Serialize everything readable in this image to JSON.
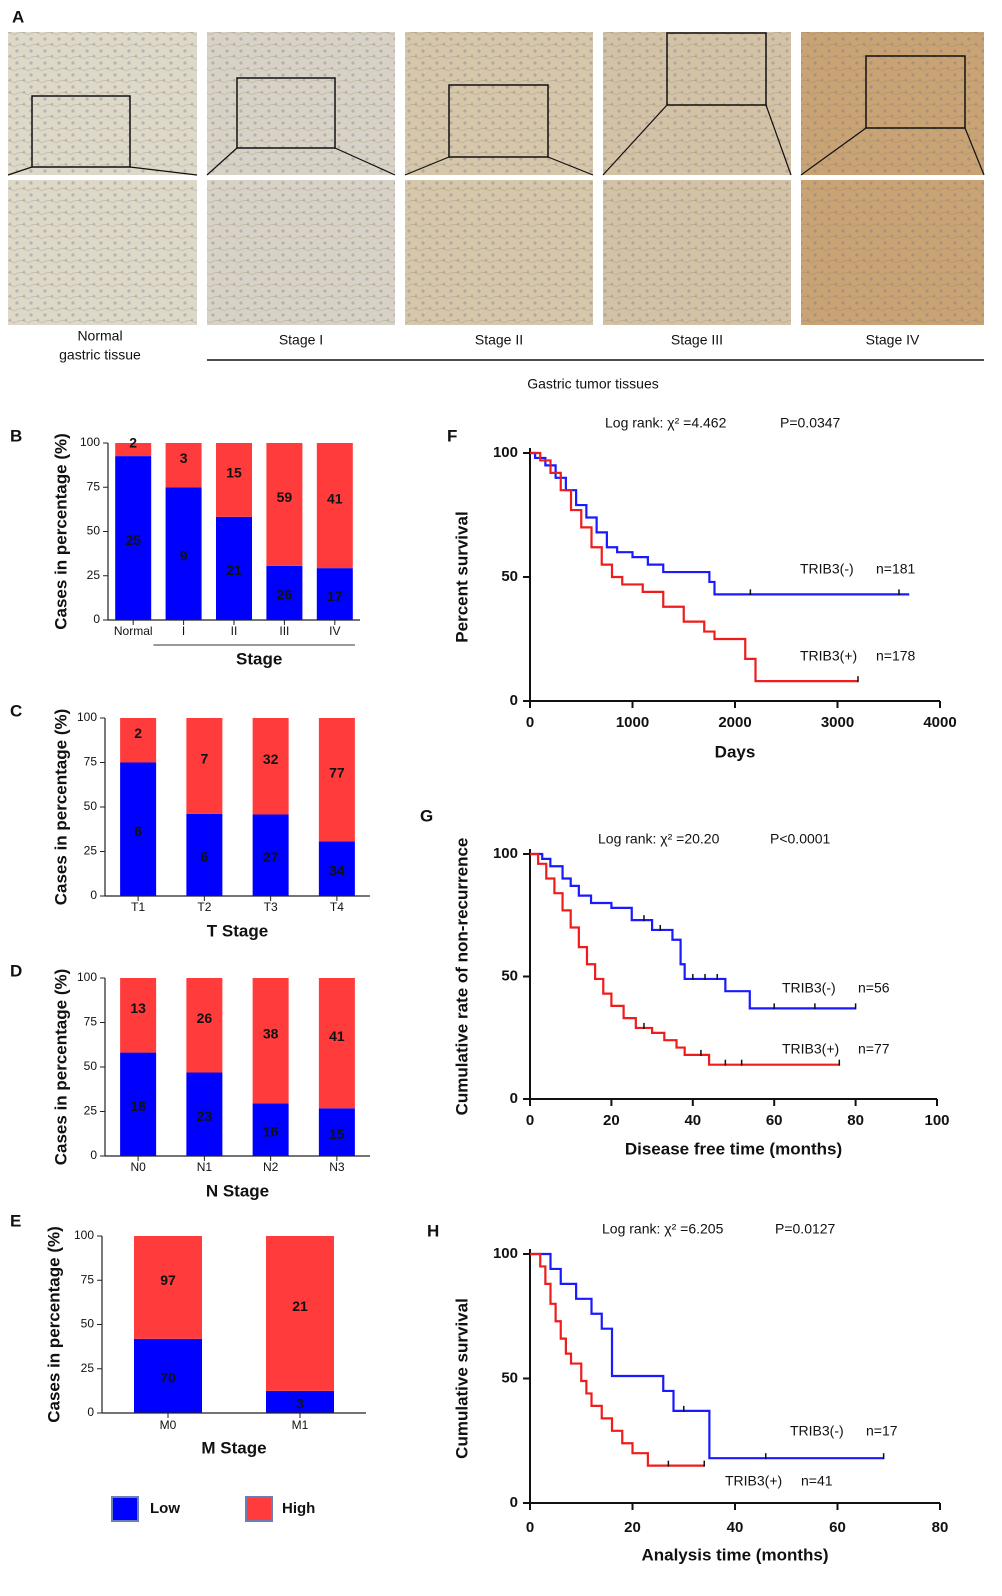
{
  "panel_a": {
    "label": "A",
    "normal_caption": [
      "Normal",
      "gastric tissue"
    ],
    "stage_captions": [
      "Stage I",
      "Stage II",
      "Stage III",
      "Stage IV"
    ],
    "group_label": "Gastric tumor tissues"
  },
  "chart_data": [
    {
      "type": "bar",
      "stacked": true,
      "label": "B",
      "ylabel": "Cases in percentage (%)",
      "xlabel": "Stage",
      "categories": [
        "Normal",
        "I",
        "II",
        "III",
        "IV"
      ],
      "ylim": [
        0,
        100
      ],
      "yticks": [
        0,
        25,
        50,
        75,
        100
      ],
      "series": [
        {
          "name": "Low",
          "color": "#0000ff",
          "values": [
            92.6,
            75,
            58.3,
            30.6,
            29.3
          ],
          "counts": [
            25,
            9,
            21,
            26,
            17
          ]
        },
        {
          "name": "High",
          "color": "#ff3b3b",
          "values": [
            7.4,
            25,
            41.7,
            69.4,
            70.7
          ],
          "counts": [
            2,
            3,
            15,
            59,
            41
          ]
        }
      ]
    },
    {
      "type": "bar",
      "stacked": true,
      "label": "C",
      "ylabel": "Cases in percentage (%)",
      "xlabel": "T Stage",
      "categories": [
        "T1",
        "T2",
        "T3",
        "T4"
      ],
      "ylim": [
        0,
        100
      ],
      "yticks": [
        0,
        25,
        50,
        75,
        100
      ],
      "series": [
        {
          "name": "Low",
          "color": "#0000ff",
          "values": [
            75,
            46.2,
            45.8,
            30.6
          ],
          "counts": [
            6,
            6,
            27,
            34
          ]
        },
        {
          "name": "High",
          "color": "#ff3b3b",
          "values": [
            25,
            53.8,
            54.2,
            69.4
          ],
          "counts": [
            2,
            7,
            32,
            77
          ]
        }
      ]
    },
    {
      "type": "bar",
      "stacked": true,
      "label": "D",
      "ylabel": "Cases in percentage (%)",
      "xlabel": "N Stage",
      "categories": [
        "N0",
        "N1",
        "N2",
        "N3"
      ],
      "ylim": [
        0,
        100
      ],
      "yticks": [
        0,
        25,
        50,
        75,
        100
      ],
      "series": [
        {
          "name": "Low",
          "color": "#0000ff",
          "values": [
            58.1,
            46.9,
            29.6,
            26.8
          ],
          "counts": [
            18,
            23,
            16,
            15
          ]
        },
        {
          "name": "High",
          "color": "#ff3b3b",
          "values": [
            41.9,
            53.1,
            70.4,
            73.2
          ],
          "counts": [
            13,
            26,
            38,
            41
          ]
        }
      ]
    },
    {
      "type": "bar",
      "stacked": true,
      "label": "E",
      "ylabel": "Cases in percentage (%)",
      "xlabel": "M  Stage",
      "categories": [
        "M0",
        "M1"
      ],
      "ylim": [
        0,
        100
      ],
      "yticks": [
        0,
        25,
        50,
        75,
        100
      ],
      "series": [
        {
          "name": "Low",
          "color": "#0000ff",
          "values": [
            41.9,
            12.5
          ],
          "counts": [
            70,
            3
          ]
        },
        {
          "name": "High",
          "color": "#ff3b3b",
          "values": [
            58.1,
            87.5
          ],
          "counts": [
            97,
            21
          ]
        }
      ]
    },
    {
      "type": "line",
      "label": "F",
      "annotation": "Log rank: χ² =4.462",
      "p_text": "P=0.0347",
      "ylabel": "Percent survival",
      "xlabel": "Days",
      "xlim": [
        0,
        4000
      ],
      "xticks": [
        0,
        1000,
        2000,
        3000,
        4000
      ],
      "ylim": [
        0,
        100
      ],
      "yticks": [
        0,
        50,
        100
      ],
      "series": [
        {
          "name": "TRIB3(-)",
          "n_label": "n=181",
          "color": "#1a1aff",
          "x": [
            0,
            50,
            50,
            150,
            150,
            250,
            250,
            350,
            350,
            450,
            450,
            550,
            550,
            650,
            650,
            750,
            750,
            850,
            850,
            1000,
            1000,
            1150,
            1150,
            1300,
            1300,
            1750,
            1750,
            1800,
            1800,
            3700
          ],
          "values": [
            100,
            100,
            98,
            98,
            95,
            95,
            90,
            90,
            85,
            85,
            79,
            79,
            74,
            74,
            68,
            68,
            62,
            62,
            60,
            60,
            58,
            58,
            55,
            55,
            52,
            52,
            48,
            48,
            43,
            43
          ],
          "censored_x": [
            2150,
            3600
          ],
          "censored_values": [
            43,
            43
          ]
        },
        {
          "name": "TRIB3(+)",
          "n_label": "n=178",
          "color": "#ee1c1c",
          "x": [
            0,
            100,
            100,
            200,
            200,
            300,
            300,
            400,
            400,
            500,
            500,
            600,
            600,
            700,
            700,
            800,
            800,
            900,
            900,
            1100,
            1100,
            1300,
            1300,
            1500,
            1500,
            1700,
            1700,
            1800,
            1800,
            2100,
            2100,
            2200,
            2200,
            3200
          ],
          "values": [
            100,
            100,
            97,
            97,
            92,
            92,
            85,
            85,
            77,
            77,
            70,
            70,
            62,
            62,
            55,
            55,
            50,
            50,
            47,
            47,
            44,
            44,
            38,
            38,
            32,
            32,
            28,
            28,
            25,
            25,
            17,
            17,
            8,
            8
          ],
          "censored_x": [
            3200
          ],
          "censored_values": [
            8
          ]
        }
      ]
    },
    {
      "type": "line",
      "label": "G",
      "annotation": "Log rank: χ² =20.20",
      "p_text": "P<0.0001",
      "ylabel": "Cumulative rate of non-recurrence",
      "xlabel": "Disease free time (months)",
      "xlim": [
        0,
        100
      ],
      "xticks": [
        0,
        20,
        40,
        60,
        80,
        100
      ],
      "ylim": [
        0,
        100
      ],
      "yticks": [
        0,
        50,
        100
      ],
      "series": [
        {
          "name": "TRIB3(-)",
          "n_label": "n=56",
          "color": "#1a1aff",
          "x": [
            0,
            3,
            3,
            5,
            5,
            8,
            8,
            10,
            10,
            12,
            12,
            15,
            15,
            20,
            20,
            25,
            25,
            30,
            30,
            35,
            35,
            37,
            37,
            38,
            38,
            48,
            48,
            54,
            54,
            80
          ],
          "values": [
            100,
            100,
            98,
            98,
            95,
            95,
            90,
            90,
            87,
            87,
            83,
            83,
            80,
            80,
            78,
            78,
            73,
            73,
            69,
            69,
            65,
            65,
            55,
            55,
            49,
            49,
            44,
            44,
            37,
            37
          ],
          "censored_x": [
            28,
            32,
            40,
            43,
            46,
            60,
            70,
            80
          ],
          "censored_values": [
            73,
            69,
            49,
            49,
            49,
            37,
            37,
            37
          ]
        },
        {
          "name": "TRIB3(+)",
          "n_label": "n=77",
          "color": "#ee1c1c",
          "x": [
            0,
            2,
            2,
            4,
            4,
            6,
            6,
            8,
            8,
            10,
            10,
            12,
            12,
            14,
            14,
            16,
            16,
            18,
            18,
            20,
            20,
            23,
            23,
            26,
            26,
            30,
            30,
            33,
            33,
            36,
            36,
            38,
            38,
            44,
            44,
            76
          ],
          "values": [
            100,
            100,
            96,
            96,
            90,
            90,
            84,
            84,
            77,
            77,
            70,
            70,
            62,
            62,
            55,
            55,
            49,
            49,
            43,
            43,
            38,
            38,
            33,
            33,
            29,
            29,
            27,
            27,
            24,
            24,
            21,
            21,
            18,
            18,
            14,
            14
          ],
          "censored_x": [
            28,
            42,
            48,
            52,
            76
          ],
          "censored_values": [
            29,
            18,
            14,
            14,
            14
          ]
        }
      ]
    },
    {
      "type": "line",
      "label": "H",
      "annotation": "Log rank: χ² =6.205",
      "p_text": "P=0.0127",
      "ylabel": "Cumulative survival",
      "xlabel": "Analysis time (months)",
      "xlim": [
        0,
        80
      ],
      "xticks": [
        0,
        20,
        40,
        60,
        80
      ],
      "ylim": [
        0,
        100
      ],
      "yticks": [
        0,
        50,
        100
      ],
      "series": [
        {
          "name": "TRIB3(-)",
          "n_label": "n=17",
          "color": "#1a1aff",
          "x": [
            0,
            4,
            4,
            6,
            6,
            9,
            9,
            12,
            12,
            14,
            14,
            16,
            16,
            26,
            26,
            28,
            28,
            35,
            35,
            69
          ],
          "values": [
            100,
            100,
            94,
            94,
            88,
            88,
            82,
            82,
            76,
            76,
            70,
            70,
            51,
            51,
            45,
            45,
            37,
            37,
            18,
            18
          ],
          "censored_x": [
            30,
            46,
            69
          ],
          "censored_values": [
            37,
            18,
            18
          ]
        },
        {
          "name": "TRIB3(+)",
          "n_label": "n=41",
          "color": "#ee1c1c",
          "x": [
            0,
            2,
            2,
            3,
            3,
            4,
            4,
            5,
            5,
            6,
            6,
            7,
            7,
            8,
            8,
            10,
            10,
            11,
            11,
            12,
            12,
            14,
            14,
            16,
            16,
            18,
            18,
            20,
            20,
            23,
            23,
            34
          ],
          "values": [
            100,
            100,
            95,
            95,
            88,
            88,
            80,
            80,
            73,
            73,
            66,
            66,
            60,
            60,
            56,
            56,
            49,
            49,
            44,
            44,
            39,
            39,
            34,
            34,
            29,
            29,
            24,
            24,
            20,
            20,
            15,
            15
          ],
          "censored_x": [
            27,
            34
          ],
          "censored_values": [
            15,
            15
          ]
        }
      ]
    }
  ]
}
